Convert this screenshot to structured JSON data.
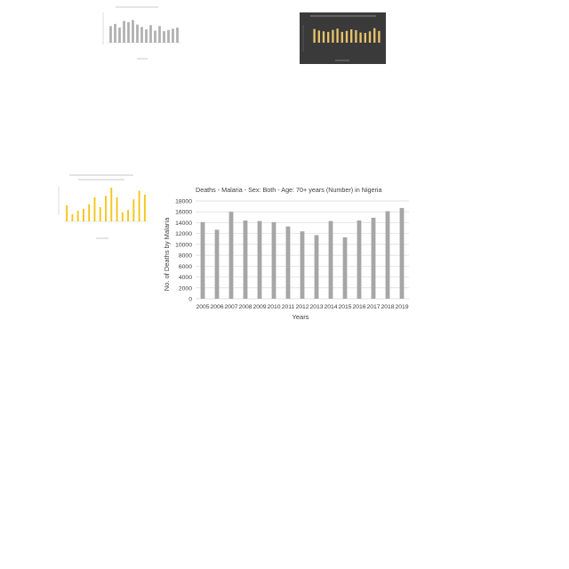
{
  "chart_data": {
    "type": "bar",
    "title": "Deaths - Malaria - Sex: Both - Age: 70+ years (Number) in Nigeria",
    "xlabel": "Years",
    "ylabel": "No. of Deaths by Malaria",
    "categories": [
      "2005",
      "2006",
      "2007",
      "2008",
      "2009",
      "2010",
      "2011",
      "2012",
      "2013",
      "2014",
      "2015",
      "2016",
      "2017",
      "2018",
      "2019"
    ],
    "values": [
      14100,
      12700,
      16000,
      14400,
      14300,
      14100,
      13300,
      12400,
      11700,
      14300,
      11300,
      14400,
      14900,
      16100,
      16700
    ],
    "yticks": [
      "0",
      "2000",
      "4000",
      "6000",
      "8000",
      "10000",
      "12000",
      "14000",
      "16000",
      "18000"
    ],
    "ylim": [
      0,
      18000
    ],
    "grid": true,
    "legend": "none",
    "colors": {
      "bar": "#a6a6a6",
      "grid": "#d9d9d9",
      "text": "#404040"
    }
  },
  "thumbnails": {
    "gray_bars": [
      0.55,
      0.62,
      0.5,
      0.72,
      0.68,
      0.75,
      0.6,
      0.52,
      0.44,
      0.58,
      0.4,
      0.55,
      0.38,
      0.42,
      0.46,
      0.5
    ],
    "dark_bars": [
      0.7,
      0.62,
      0.58,
      0.55,
      0.65,
      0.72,
      0.55,
      0.6,
      0.68,
      0.64,
      0.52,
      0.5,
      0.58,
      0.74,
      0.6
    ],
    "yellow_bars": [
      0.45,
      0.2,
      0.3,
      0.35,
      0.48,
      0.68,
      0.4,
      0.72,
      0.95,
      0.68,
      0.25,
      0.32,
      0.62,
      0.86,
      0.75
    ],
    "colors": {
      "gray": "#b0b0b0",
      "dark_bg": "#3a3a3a",
      "gold": "#e8c36a",
      "yellow": "#f5c518"
    }
  }
}
